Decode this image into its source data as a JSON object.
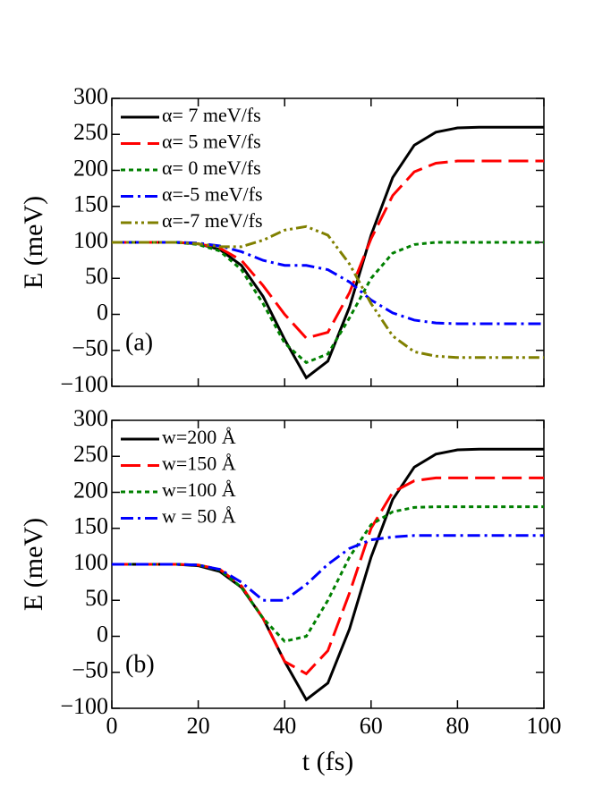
{
  "chart_data": [
    {
      "type": "line",
      "annotation": "(a)",
      "ylabel": "E (meV)",
      "x": [
        0,
        5,
        10,
        15,
        20,
        25,
        30,
        35,
        40,
        45,
        50,
        55,
        60,
        65,
        70,
        75,
        80,
        85,
        90,
        95,
        100
      ],
      "xlim": [
        0,
        100
      ],
      "ylim": [
        -100,
        300
      ],
      "yticks": [
        {
          "value": -100,
          "label": "−100"
        },
        {
          "value": -50,
          "label": "−50"
        },
        0,
        50,
        100,
        150,
        200,
        250,
        300
      ],
      "series": [
        {
          "name": "α= 7 meV/fs",
          "color": "#000000",
          "values": [
            100,
            100,
            100,
            100,
            98,
            90,
            68,
            25,
            -35,
            -88,
            -65,
            10,
            110,
            190,
            235,
            253,
            259,
            260,
            260,
            260,
            260
          ]
        },
        {
          "name": "α= 5 meV/fs",
          "color": "#ff0000",
          "values": [
            100,
            100,
            100,
            100,
            98,
            92,
            75,
            40,
            0,
            -33,
            -25,
            30,
            105,
            165,
            198,
            210,
            213,
            213,
            213,
            213,
            213
          ]
        },
        {
          "name": "α= 0 meV/fs",
          "color": "#008000",
          "values": [
            100,
            100,
            100,
            100,
            97,
            88,
            62,
            15,
            -40,
            -67,
            -55,
            -5,
            50,
            85,
            97,
            100,
            100,
            100,
            100,
            100,
            100
          ]
        },
        {
          "name": "α=-5 meV/fs",
          "color": "#0000ff",
          "values": [
            100,
            100,
            100,
            100,
            99,
            95,
            87,
            75,
            68,
            68,
            62,
            45,
            20,
            2,
            -8,
            -12,
            -13,
            -13,
            -13,
            -13,
            -13
          ]
        },
        {
          "name": "α=-7 meV/fs",
          "color": "#808000",
          "values": [
            100,
            100,
            100,
            100,
            98,
            94,
            94,
            103,
            117,
            122,
            110,
            70,
            15,
            -30,
            -52,
            -58,
            -60,
            -60,
            -60,
            -60,
            -60
          ]
        }
      ]
    },
    {
      "type": "line",
      "annotation": "(b)",
      "ylabel": "E (meV)",
      "xlabel": "t (fs)",
      "x": [
        0,
        5,
        10,
        15,
        20,
        25,
        30,
        35,
        40,
        45,
        50,
        55,
        60,
        65,
        70,
        75,
        80,
        85,
        90,
        95,
        100
      ],
      "xlim": [
        0,
        100
      ],
      "xticks": [
        0,
        20,
        40,
        60,
        80,
        100
      ],
      "ylim": [
        -100,
        300
      ],
      "yticks": [
        {
          "value": -100,
          "label": "−100"
        },
        {
          "value": -50,
          "label": "−50"
        },
        0,
        50,
        100,
        150,
        200,
        250,
        300
      ],
      "series": [
        {
          "name": "w=200 Å",
          "color": "#000000",
          "values": [
            100,
            100,
            100,
            100,
            98,
            90,
            68,
            25,
            -35,
            -88,
            -65,
            10,
            110,
            190,
            235,
            253,
            259,
            260,
            260,
            260,
            260
          ]
        },
        {
          "name": "w=150 Å",
          "color": "#ff0000",
          "values": [
            100,
            100,
            100,
            100,
            99,
            93,
            70,
            25,
            -35,
            -52,
            -20,
            60,
            150,
            200,
            216,
            220,
            220,
            220,
            220,
            220,
            220
          ]
        },
        {
          "name": "w=100 Å",
          "color": "#008000",
          "values": [
            100,
            100,
            100,
            100,
            99,
            92,
            68,
            25,
            -7,
            0,
            50,
            110,
            155,
            173,
            179,
            180,
            180,
            180,
            180,
            180,
            180
          ]
        },
        {
          "name": "w = 50 Å",
          "color": "#0000ff",
          "values": [
            100,
            100,
            100,
            100,
            99,
            93,
            75,
            50,
            50,
            72,
            100,
            122,
            134,
            138,
            140,
            140,
            140,
            140,
            140,
            140,
            140
          ]
        }
      ]
    }
  ]
}
